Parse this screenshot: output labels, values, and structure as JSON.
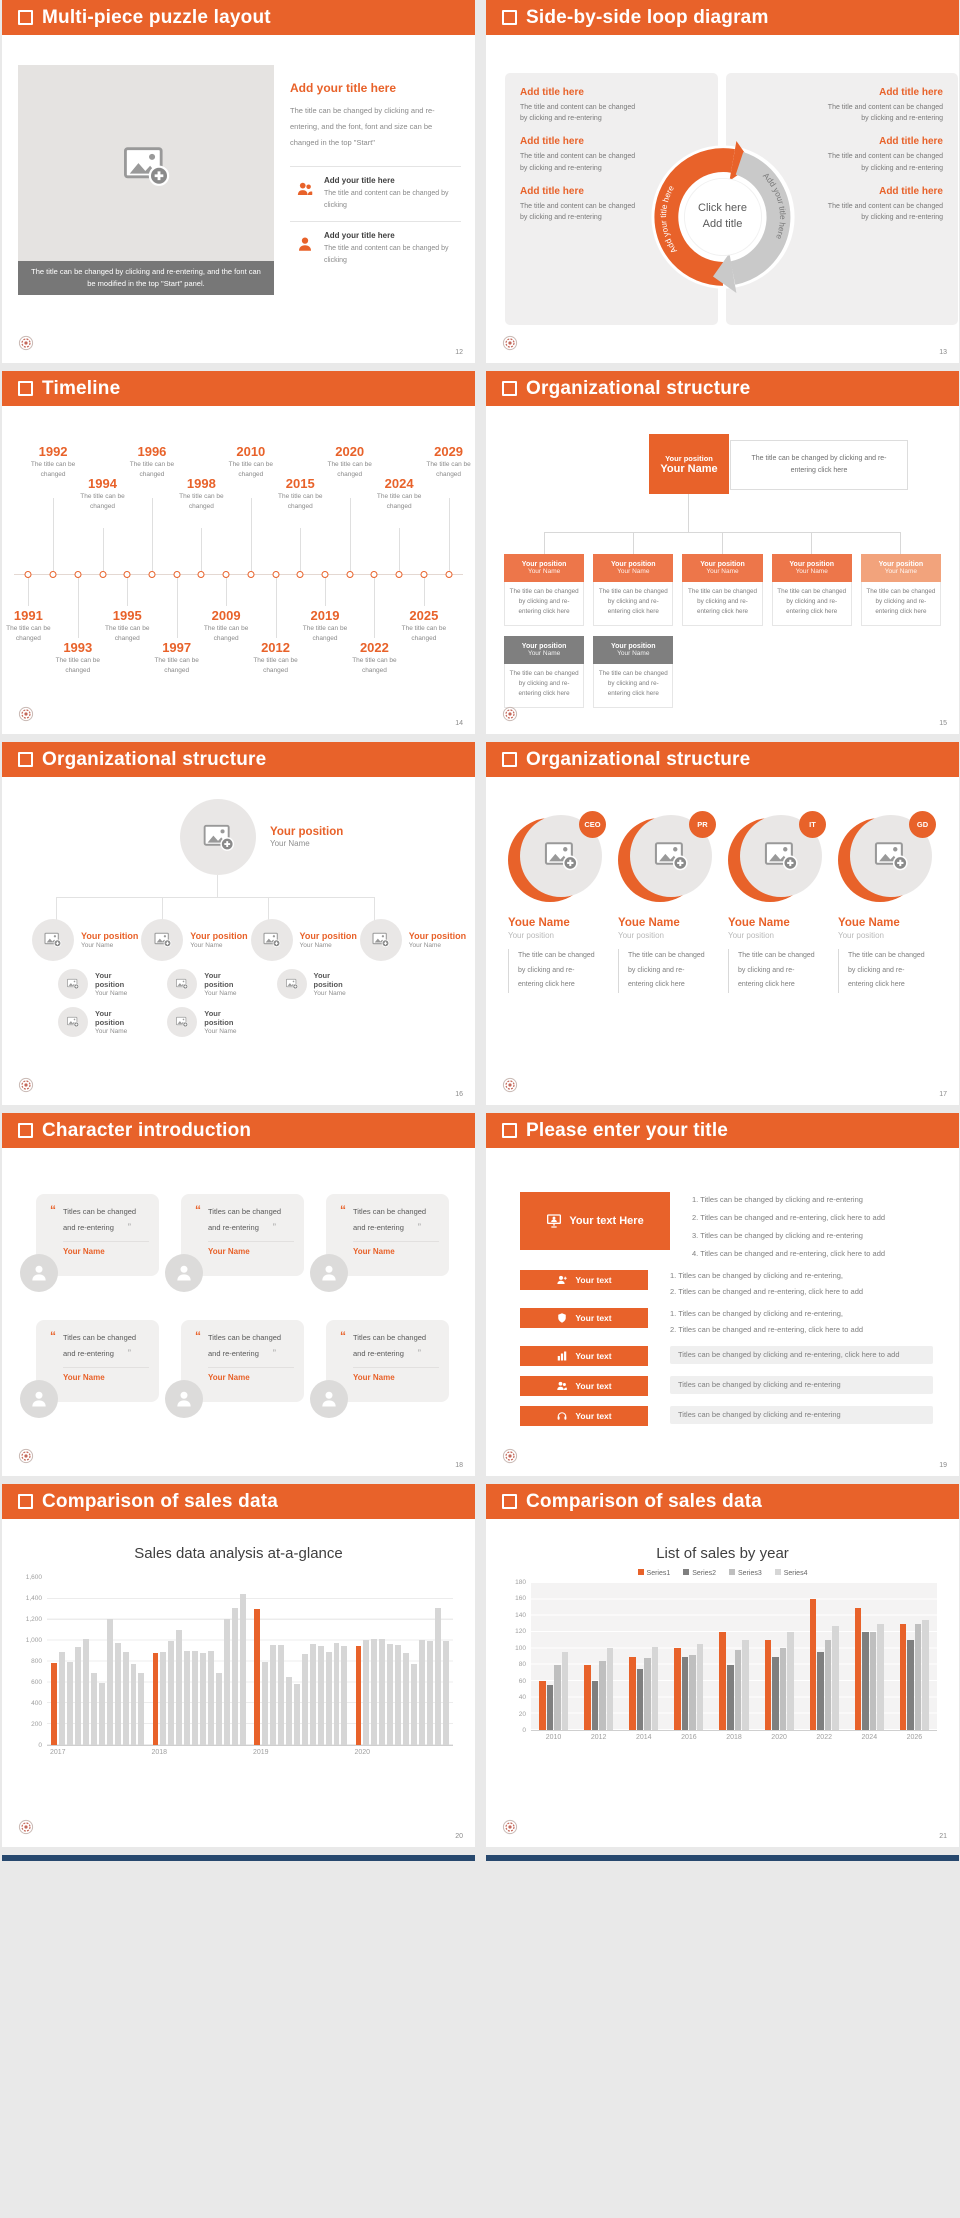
{
  "theme": {
    "accent": "#E8622A",
    "accent_box": "#ED764A",
    "accent_light": "#F2A37C",
    "gray_box": "#7F7F7F",
    "panel_gray": "#F0EFEF",
    "bar_gray": "#D6D6D6",
    "peek_color": "#27486E"
  },
  "slides": {
    "s12": {
      "title": "Multi-piece puzzle layout",
      "page": "12",
      "caption": "The title can be changed by clicking and re-entering, and the font can be modified in the top \"Start\" panel.",
      "heading": "Add your title here",
      "body": "The title can be changed by clicking and re-entering, and the font, font and size can be changed in the top \"Start\"",
      "items": [
        {
          "icon_tpl": "tpl-people",
          "icon_name": "people-icon",
          "title": "Add your title here",
          "body": "The title and content can be changed by clicking"
        },
        {
          "icon_tpl": "tpl-person",
          "icon_name": "person-icon",
          "title": "Add your title here",
          "body": "The title and content can be changed by clicking"
        }
      ]
    },
    "s13": {
      "title": "Side-by-side loop diagram",
      "page": "13",
      "left": [
        {
          "title": "Add title here",
          "body": "The title and content can be changed by clicking and re-entering"
        },
        {
          "title": "Add title here",
          "body": "The title and content can be changed by clicking and re-entering"
        },
        {
          "title": "Add title here",
          "body": "The title and content can be changed by clicking and re-entering"
        }
      ],
      "right": [
        {
          "title": "Add title here",
          "body": "The title and content can be changed by clicking and re-entering"
        },
        {
          "title": "Add title here",
          "body": "The title and content can be changed by clicking and re-entering"
        },
        {
          "title": "Add title here",
          "body": "The title and content can be changed by clicking and re-entering"
        }
      ],
      "arrow_left_text": "Add your title here",
      "arrow_right_text": "Add your title here",
      "center_line1": "Click here",
      "center_line2": "Add title"
    },
    "s14": {
      "title": "Timeline",
      "page": "14",
      "events": [
        {
          "year": "1991",
          "caption": "The title can be changed",
          "cls": "ev b-near"
        },
        {
          "year": "1992",
          "caption": "The title can be changed",
          "cls": "ev t-far"
        },
        {
          "year": "1993",
          "caption": "The title can be changed",
          "cls": "ev b-far"
        },
        {
          "year": "1994",
          "caption": "The title can be changed",
          "cls": "ev t-near"
        },
        {
          "year": "1995",
          "caption": "The title can be changed",
          "cls": "ev b-near"
        },
        {
          "year": "1996",
          "caption": "The title can be changed",
          "cls": "ev t-far"
        },
        {
          "year": "1997",
          "caption": "The title can be changed",
          "cls": "ev b-far"
        },
        {
          "year": "1998",
          "caption": "The title can be changed",
          "cls": "ev t-near"
        },
        {
          "year": "2009",
          "caption": "The title can be changed",
          "cls": "ev b-near"
        },
        {
          "year": "2010",
          "caption": "The title can be changed",
          "cls": "ev t-far"
        },
        {
          "year": "2012",
          "caption": "The title can be changed",
          "cls": "ev b-far"
        },
        {
          "year": "2015",
          "caption": "The title can be changed",
          "cls": "ev t-near"
        },
        {
          "year": "2019",
          "caption": "The title can be changed",
          "cls": "ev b-near"
        },
        {
          "year": "2020",
          "caption": "The title can be changed",
          "cls": "ev t-far"
        },
        {
          "year": "2022",
          "caption": "The title can be changed",
          "cls": "ev b-far"
        },
        {
          "year": "2024",
          "caption": "The title can be changed",
          "cls": "ev t-near"
        },
        {
          "year": "2025",
          "caption": "The title can be changed",
          "cls": "ev b-near"
        },
        {
          "year": "2029",
          "caption": "The title can be changed",
          "cls": "ev t-far"
        }
      ]
    },
    "s15": {
      "title": "Organizational structure",
      "page": "15",
      "root": {
        "position": "Your position",
        "name": "Your Name"
      },
      "root_note": "The title can be changed by clicking and re-entering click here",
      "level2": [
        {
          "position": "Your position",
          "name": "Your Name",
          "note": "The title can be changed by clicking and re-entering click here",
          "color": "#ED764A",
          "child": {
            "position": "Your position",
            "name": "Your Name",
            "note": "The title can be changed by clicking and re-entering click here"
          }
        },
        {
          "position": "Your position",
          "name": "Your Name",
          "note": "The title can be changed by clicking and re-entering click here",
          "color": "#ED764A",
          "child": {
            "position": "Your position",
            "name": "Your Name",
            "note": "The title can be changed by clicking and re-entering click here"
          }
        },
        {
          "position": "Your position",
          "name": "Your Name",
          "note": "The title can be changed by clicking and re-entering click here",
          "color": "#ED764A"
        },
        {
          "position": "Your position",
          "name": "Your Name",
          "note": "The title can be changed by clicking and re-entering click here",
          "color": "#ED764A"
        },
        {
          "position": "Your position",
          "name": "Your Name",
          "note": "The title can be changed by clicking and re-entering click here",
          "color": "#F2A37C"
        }
      ]
    },
    "s16": {
      "title": "Organizational structure",
      "page": "16",
      "root": {
        "position": "Your position",
        "name": "Your Name"
      },
      "branches": [
        {
          "position": "Your position",
          "name": "Your Name",
          "children": [
            {
              "position": "Your position",
              "name": "Your Name"
            },
            {
              "position": "Your position",
              "name": "Your Name"
            }
          ]
        },
        {
          "position": "Your position",
          "name": "Your Name",
          "children": [
            {
              "position": "Your position",
              "name": "Your Name"
            },
            {
              "position": "Your position",
              "name": "Your Name"
            }
          ]
        },
        {
          "position": "Your position",
          "name": "Your Name",
          "children": [
            {
              "position": "Your position",
              "name": "Your Name"
            }
          ]
        },
        {
          "position": "Your position",
          "name": "Your Name",
          "children": []
        }
      ]
    },
    "s17": {
      "title": "Organizational structure",
      "page": "17",
      "members": [
        {
          "badge": "CEO",
          "name": "Youe Name",
          "position": "Your position",
          "note": "The title can be changed by clicking and re-entering click here"
        },
        {
          "badge": "PR",
          "name": "Youe Name",
          "position": "Your position",
          "note": "The title can be changed by clicking and re-entering click here"
        },
        {
          "badge": "IT",
          "name": "Youe Name",
          "position": "Your position",
          "note": "The title can be changed by clicking and re-entering click here"
        },
        {
          "badge": "GD",
          "name": "Youe Name",
          "position": "Your position",
          "note": "The title can be changed by clicking and re-entering click here"
        }
      ]
    },
    "s18": {
      "title": "Character introduction",
      "page": "18",
      "open_quote": "“",
      "close_quote": "”",
      "cards": [
        {
          "quote": "Titles can be changed and re-entering",
          "name": "Your Name"
        },
        {
          "quote": "Titles can be changed and re-entering",
          "name": "Your Name"
        },
        {
          "quote": "Titles can be changed and re-entering",
          "name": "Your Name"
        },
        {
          "quote": "Titles can be changed and re-entering",
          "name": "Your Name"
        },
        {
          "quote": "Titles can be changed and re-entering",
          "name": "Your Name"
        },
        {
          "quote": "Titles can be changed and re-entering",
          "name": "Your Name"
        }
      ]
    },
    "s19": {
      "title": "Please enter your title",
      "page": "19",
      "rows": [
        {
          "label": "Your text Here",
          "btn_cls": "s19-btn big",
          "row_cls": "s19-row r1",
          "icon_tpl": "tpl-present",
          "icon_name": "presenter-icon",
          "lines": [
            {
              "text": "1.    Titles can be changed by clicking and re-entering",
              "cls": "s19-ln"
            },
            {
              "text": "2.    Titles can be changed and re-entering, click here to add",
              "cls": "s19-ln"
            },
            {
              "text": "3.    Titles can be changed by clicking and re-entering",
              "cls": "s19-ln"
            },
            {
              "text": "4.    Titles can be changed and re-entering, click here to add",
              "cls": "s19-ln"
            }
          ]
        },
        {
          "label": "Your text",
          "btn_cls": "s19-btn",
          "row_cls": "s19-row",
          "icon_tpl": "tpl-addperson",
          "icon_name": "add-person-icon",
          "lines": [
            {
              "text": "1.    Titles can be changed by clicking and re-entering,",
              "cls": "s19-ln"
            },
            {
              "text": "2.    Titles can be changed and re-entering, click here to add",
              "cls": "s19-ln"
            }
          ]
        },
        {
          "label": "Your text",
          "btn_cls": "s19-btn",
          "row_cls": "s19-row",
          "icon_tpl": "tpl-shield",
          "icon_name": "shield-icon",
          "lines": [
            {
              "text": "1.    Titles can be changed by clicking and re-entering,",
              "cls": "s19-ln"
            },
            {
              "text": "2.    Titles can be changed and re-entering, click here to add",
              "cls": "s19-ln"
            }
          ]
        },
        {
          "label": "Your text",
          "btn_cls": "s19-btn",
          "row_cls": "s19-row",
          "icon_tpl": "tpl-chart",
          "icon_name": "bar-chart-icon",
          "lines": [
            {
              "text": "Titles can be changed by clicking and re-entering, click here to add",
              "cls": "s19-ln stripe"
            }
          ]
        },
        {
          "label": "Your text",
          "btn_cls": "s19-btn",
          "row_cls": "s19-row",
          "icon_tpl": "tpl-people",
          "icon_name": "people-icon",
          "lines": [
            {
              "text": "Titles can be changed by clicking and re-entering",
              "cls": "s19-ln stripe"
            }
          ]
        },
        {
          "label": "Your text",
          "btn_cls": "s19-btn",
          "row_cls": "s19-row",
          "icon_tpl": "tpl-headset",
          "icon_name": "headset-icon",
          "lines": [
            {
              "text": "Titles can be changed by clicking and re-entering",
              "cls": "s19-ln stripe"
            }
          ]
        }
      ]
    },
    "s20": {
      "title": "Comparison of sales data",
      "page": "20",
      "chart": {
        "type": "bar",
        "title": "Sales data analysis at-a-glance",
        "ymax": 1600,
        "ylim": [
          0,
          1600
        ],
        "grid": true,
        "ytick_labels": [
          "1,600",
          "1,400",
          "1,200",
          "1,000",
          "800",
          "600",
          "400",
          "200",
          "0"
        ],
        "bar_color": "#D6D6D6",
        "highlight_color": "#E8622A",
        "groups": [
          {
            "label": "2017",
            "values": [
              790,
              890,
              800,
              940,
              1020,
              690,
              590,
              1210,
              980,
              890,
              780,
              690
            ]
          },
          {
            "label": "2018",
            "values": [
              880,
              890,
              1000,
              1100,
              900,
              900,
              880,
              900,
              690,
              1210,
              1310,
              1450
            ]
          },
          {
            "label": "2019",
            "values": [
              1300,
              800,
              960,
              960,
              650,
              580,
              870,
              970,
              950,
              890,
              980,
              950
            ]
          },
          {
            "label": "2020",
            "values": [
              950,
              1010,
              1020,
              1020,
              970,
              960,
              880,
              780,
              1010,
              1000,
              1310,
              1000
            ]
          }
        ]
      }
    },
    "s21": {
      "title": "Comparison of sales data",
      "page": "21",
      "chart": {
        "type": "bar",
        "title": "List of sales by year",
        "ymax": 180,
        "ylim": [
          0,
          180
        ],
        "grid": true,
        "legend_position": "top",
        "ytick_labels": [
          "180",
          "160",
          "140",
          "120",
          "100",
          "80",
          "60",
          "40",
          "20",
          "0"
        ],
        "categories": [
          "2010",
          "2012",
          "2014",
          "2016",
          "2018",
          "2020",
          "2022",
          "2024",
          "2026"
        ],
        "series": [
          {
            "name": "Series1",
            "color": "#E8622A",
            "values": [
              60,
              80,
              90,
              100,
              120,
              110,
              160,
              150,
              130
            ]
          },
          {
            "name": "Series2",
            "color": "#7F7F7F",
            "values": [
              55,
              60,
              75,
              90,
              80,
              90,
              95,
              120,
              110
            ]
          },
          {
            "name": "Series3",
            "color": "#BFBFBF",
            "values": [
              80,
              85,
              88,
              92,
              98,
              100,
              110,
              120,
              130
            ]
          },
          {
            "name": "Series4",
            "color": "#D6D6D6",
            "values": [
              95,
              100,
              102,
              105,
              110,
              120,
              127,
              130,
              135
            ]
          }
        ]
      }
    }
  },
  "chart_data": [
    {
      "type": "bar",
      "title": "Sales data analysis at-a-glance",
      "ylabel": "",
      "xlabel": "",
      "ylim": [
        0,
        1600
      ],
      "categories": [
        "2017",
        "2018",
        "2019",
        "2020"
      ],
      "series_note": "12 monthly bars per year, first bar of each year highlighted orange",
      "groups": [
        [
          790,
          890,
          800,
          940,
          1020,
          690,
          590,
          1210,
          980,
          890,
          780,
          690
        ],
        [
          880,
          890,
          1000,
          1100,
          900,
          900,
          880,
          900,
          690,
          1210,
          1310,
          1450
        ],
        [
          1300,
          800,
          960,
          960,
          650,
          580,
          870,
          970,
          950,
          890,
          980,
          950
        ],
        [
          950,
          1010,
          1020,
          1020,
          970,
          960,
          880,
          780,
          1010,
          1000,
          1310,
          1000
        ]
      ]
    },
    {
      "type": "bar",
      "title": "List of sales by year",
      "ylim": [
        0,
        180
      ],
      "legend_position": "top",
      "categories": [
        "2010",
        "2012",
        "2014",
        "2016",
        "2018",
        "2020",
        "2022",
        "2024",
        "2026"
      ],
      "series": [
        {
          "name": "Series1",
          "values": [
            60,
            80,
            90,
            100,
            120,
            110,
            160,
            150,
            130
          ]
        },
        {
          "name": "Series2",
          "values": [
            55,
            60,
            75,
            90,
            80,
            90,
            95,
            120,
            110
          ]
        },
        {
          "name": "Series3",
          "values": [
            80,
            85,
            88,
            92,
            98,
            100,
            110,
            120,
            130
          ]
        },
        {
          "name": "Series4",
          "values": [
            95,
            100,
            102,
            105,
            110,
            120,
            127,
            130,
            135
          ]
        }
      ]
    }
  ]
}
